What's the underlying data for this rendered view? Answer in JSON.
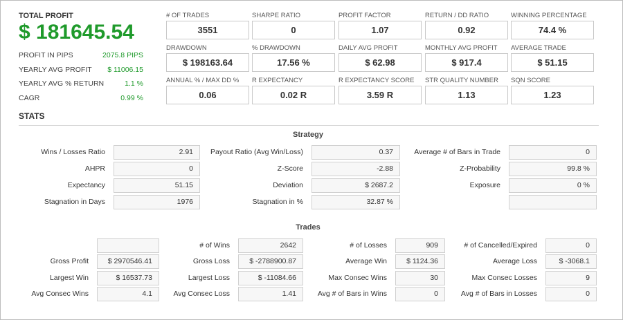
{
  "summary": {
    "total_profit_label": "TOTAL PROFIT",
    "total_profit_value": "$ 181645.54",
    "items": [
      {
        "label": "PROFIT IN PIPS",
        "value": "2075.8 PIPS"
      },
      {
        "label": "YEARLY AVG PROFIT",
        "value": "$ 11006.15"
      },
      {
        "label": "YEARLY AVG % RETURN",
        "value": "1.1 %"
      },
      {
        "label": "CAGR",
        "value": "0.99 %"
      }
    ]
  },
  "metrics": [
    {
      "label": "# OF TRADES",
      "value": "3551"
    },
    {
      "label": "SHARPE RATIO",
      "value": "0"
    },
    {
      "label": "PROFIT FACTOR",
      "value": "1.07"
    },
    {
      "label": "RETURN / DD RATIO",
      "value": "0.92"
    },
    {
      "label": "WINNING PERCENTAGE",
      "value": "74.4 %"
    },
    {
      "label": "DRAWDOWN",
      "value": "$ 198163.64"
    },
    {
      "label": "% DRAWDOWN",
      "value": "17.56 %"
    },
    {
      "label": "DAILY AVG PROFIT",
      "value": "$ 62.98"
    },
    {
      "label": "MONTHLY AVG PROFIT",
      "value": "$ 917.4"
    },
    {
      "label": "AVERAGE TRADE",
      "value": "$ 51.15"
    },
    {
      "label": "ANNUAL % / MAX DD %",
      "value": "0.06"
    },
    {
      "label": "R EXPECTANCY",
      "value": "0.02 R"
    },
    {
      "label": "R EXPECTANCY SCORE",
      "value": "3.59 R"
    },
    {
      "label": "STR QUALITY NUMBER",
      "value": "1.13"
    },
    {
      "label": "SQN SCORE",
      "value": "1.23"
    }
  ],
  "stats_title": "STATS",
  "strategy": {
    "title": "Strategy",
    "rows": [
      [
        {
          "label": "Wins / Losses Ratio",
          "value": "2.91"
        },
        {
          "label": "Payout Ratio (Avg Win/Loss)",
          "value": "0.37"
        },
        {
          "label": "Average # of Bars in Trade",
          "value": "0"
        }
      ],
      [
        {
          "label": "AHPR",
          "value": "0"
        },
        {
          "label": "Z-Score",
          "value": "-2.88"
        },
        {
          "label": "Z-Probability",
          "value": "99.8 %"
        }
      ],
      [
        {
          "label": "Expectancy",
          "value": "51.15"
        },
        {
          "label": "Deviation",
          "value": "$ 2687.2"
        },
        {
          "label": "Exposure",
          "value": "0 %"
        }
      ],
      [
        {
          "label": "Stagnation in Days",
          "value": "1976"
        },
        {
          "label": "Stagnation in %",
          "value": "32.87 %"
        },
        {
          "label": "",
          "value": ""
        }
      ]
    ]
  },
  "trades": {
    "title": "Trades",
    "rows": [
      [
        {
          "label": "",
          "value": ""
        },
        {
          "label": "# of Wins",
          "value": "2642"
        },
        {
          "label": "# of Losses",
          "value": "909"
        },
        {
          "label": "# of Cancelled/Expired",
          "value": "0"
        }
      ],
      [
        {
          "label": "Gross Profit",
          "value": "$ 2970546.41"
        },
        {
          "label": "Gross Loss",
          "value": "$ -2788900.87"
        },
        {
          "label": "Average Win",
          "value": "$ 1124.36"
        },
        {
          "label": "Average Loss",
          "value": "$ -3068.1"
        }
      ],
      [
        {
          "label": "Largest Win",
          "value": "$ 16537.73"
        },
        {
          "label": "Largest Loss",
          "value": "$ -11084.66"
        },
        {
          "label": "Max Consec Wins",
          "value": "30"
        },
        {
          "label": "Max Consec Losses",
          "value": "9"
        }
      ],
      [
        {
          "label": "Avg Consec Wins",
          "value": "4.1"
        },
        {
          "label": "Avg Consec Loss",
          "value": "1.41"
        },
        {
          "label": "Avg # of Bars in Wins",
          "value": "0"
        },
        {
          "label": "Avg # of Bars in Losses",
          "value": "0"
        }
      ]
    ]
  }
}
